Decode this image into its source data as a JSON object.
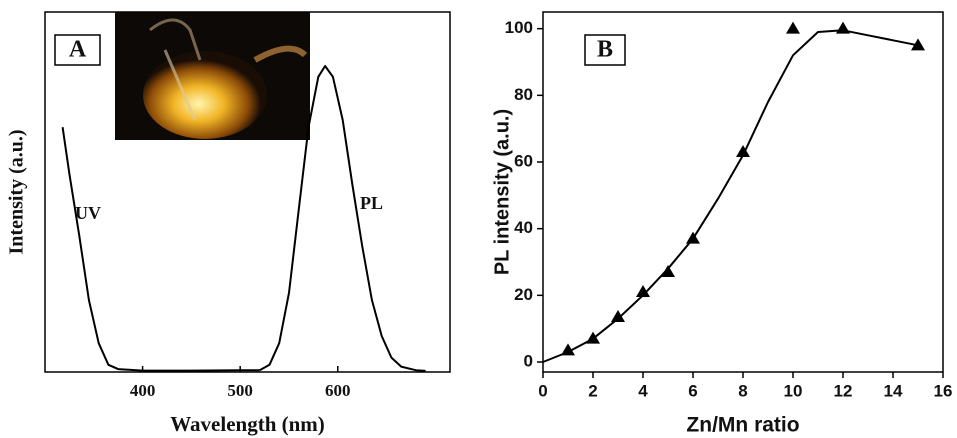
{
  "chart_data": [
    {
      "type": "line",
      "panel_label": "A",
      "x_label": "Wavelength (nm)",
      "y_label": "Intensity (a.u.)",
      "xlim": [
        300,
        715
      ],
      "ylim": [
        0,
        100
      ],
      "xticks": [
        400,
        500,
        600
      ],
      "series": [
        {
          "name": "UV",
          "color": "#000000",
          "x": [
            318,
            325,
            335,
            345,
            355,
            365,
            375,
            400,
            450,
            500,
            520
          ],
          "values": [
            68,
            55,
            38,
            20,
            8,
            2,
            0.8,
            0.4,
            0.4,
            0.5,
            0.5
          ]
        },
        {
          "name": "PL",
          "color": "#000000",
          "x": [
            520,
            530,
            540,
            550,
            560,
            570,
            580,
            587,
            595,
            605,
            615,
            625,
            635,
            645,
            655,
            665,
            680,
            690
          ],
          "values": [
            0.5,
            2,
            8,
            22,
            45,
            68,
            82,
            85,
            82,
            70,
            52,
            35,
            20,
            10,
            4,
            1.5,
            0.5,
            0.3
          ]
        }
      ]
    },
    {
      "type": "scatter",
      "panel_label": "B",
      "x_label": "Zn/Mn ratio",
      "y_label": "PL intensity (a.u.)",
      "xlim": [
        0,
        16
      ],
      "ylim": [
        -3,
        105
      ],
      "xticks": [
        0,
        2,
        4,
        6,
        8,
        10,
        12,
        14,
        16
      ],
      "yticks": [
        0,
        20,
        40,
        60,
        80,
        100
      ],
      "x": [
        1,
        2,
        3,
        4,
        5,
        6,
        8,
        10,
        12,
        15
      ],
      "values": [
        3.5,
        7,
        13.5,
        21,
        27,
        37,
        63,
        100,
        100,
        95
      ],
      "color": "#000000",
      "fit": {
        "x": [
          0,
          1,
          2,
          3,
          4,
          5,
          6,
          7,
          8,
          9,
          10,
          11,
          12,
          13,
          14,
          15
        ],
        "values": [
          0,
          3,
          7,
          13,
          20,
          28,
          37,
          49,
          62,
          78,
          92,
          99,
          99.5,
          98,
          96.5,
          95
        ]
      }
    }
  ]
}
